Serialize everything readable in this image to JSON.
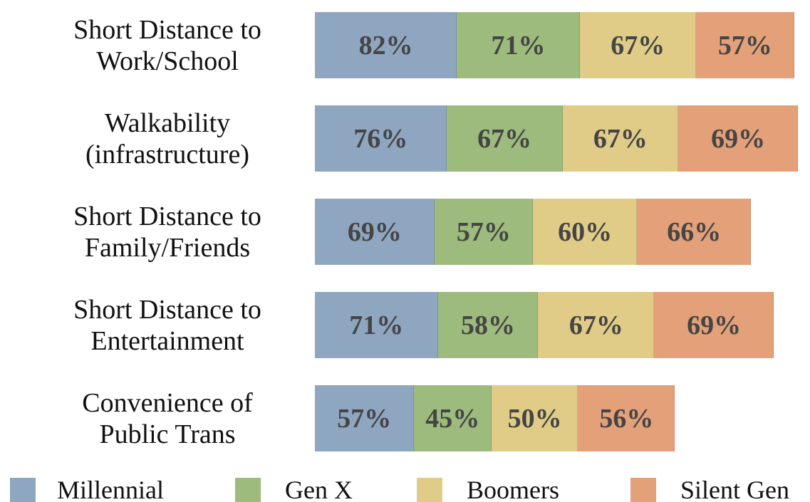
{
  "chart_data": {
    "type": "stacked_bar_horizontal",
    "categories": [
      "Short Distance to\nWork/School",
      "Walkability\n(infrastructure)",
      "Short Distance to\nFamily/Friends",
      "Short Distance to\nEntertainment",
      "Convenience of\nPublic Trans"
    ],
    "series": [
      {
        "name": "Millennial",
        "color": "#8fa6c1",
        "values": [
          82,
          76,
          69,
          71,
          57
        ],
        "value_labels": [
          "82%",
          "76%",
          "69%",
          "71%",
          "57%"
        ]
      },
      {
        "name": "Gen X",
        "color": "#9dbb7d",
        "values": [
          71,
          67,
          57,
          58,
          45
        ],
        "value_labels": [
          "71%",
          "67%",
          "57%",
          "58%",
          "45%"
        ]
      },
      {
        "name": "Boomers",
        "color": "#e0cc86",
        "values": [
          67,
          67,
          60,
          67,
          50
        ],
        "value_labels": [
          "67%",
          "67%",
          "60%",
          "67%",
          "50%"
        ]
      },
      {
        "name": "Silent Gen",
        "color": "#e4a078",
        "values": [
          57,
          69,
          66,
          69,
          56
        ],
        "value_labels": [
          "57%",
          "69%",
          "66%",
          "69%",
          "56%"
        ]
      }
    ],
    "legend": "bottom"
  }
}
